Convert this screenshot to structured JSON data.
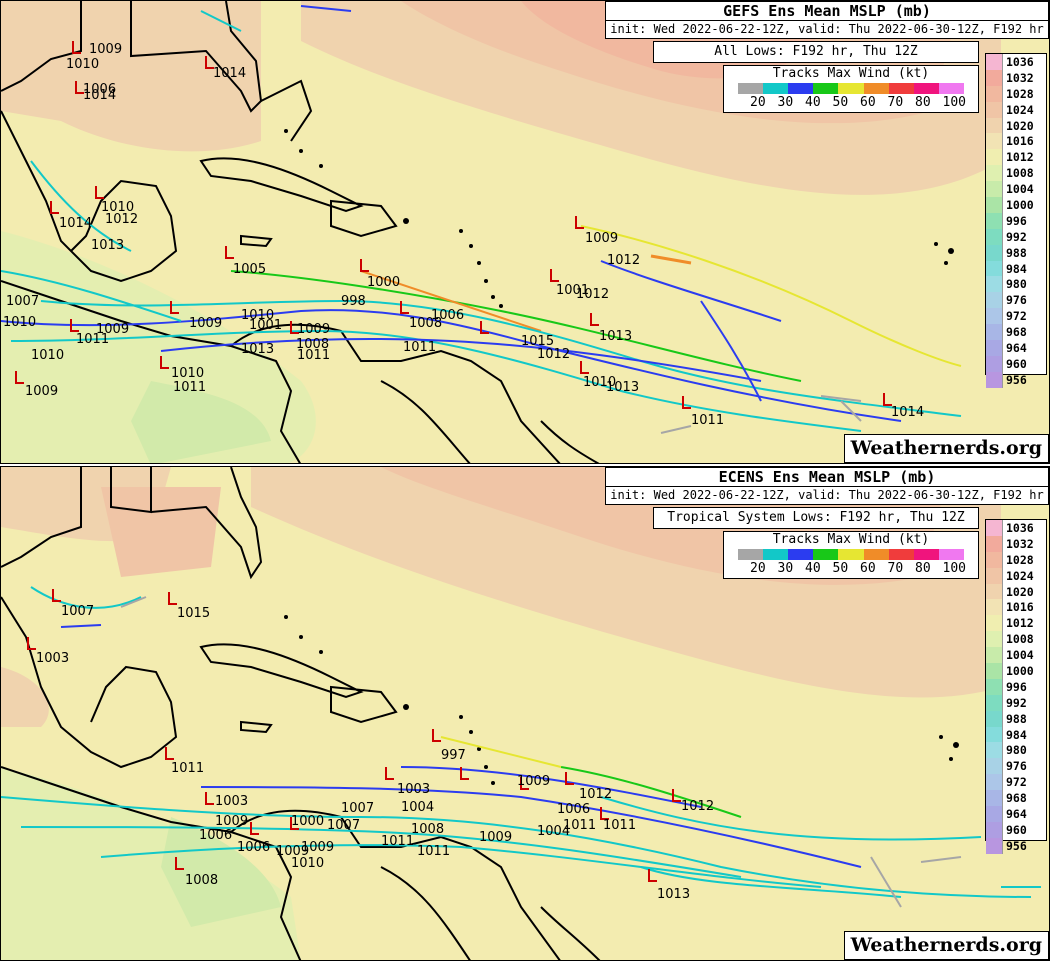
{
  "panels": [
    {
      "id": "gefs",
      "title": "GEFS Ens Mean MSLP (mb)",
      "subtitle": "init: Wed 2022-06-22-12Z, valid: Thu 2022-06-30-12Z, F192 hr",
      "lows_label": "All Lows: F192 hr, Thu 12Z",
      "low_labels": [
        "1009",
        "1014",
        "1010",
        "1006",
        "1014",
        "1010",
        "1014",
        "1012",
        "1013",
        "1005",
        "998",
        "1000",
        "1009",
        "1012",
        "1007",
        "1010",
        "1009",
        "1010",
        "1001",
        "1009",
        "1008",
        "1011",
        "1008",
        "1006",
        "1013",
        "1011",
        "1015",
        "1012",
        "1010",
        "1011",
        "1009",
        "1001",
        "1012",
        "1013",
        "1010",
        "1013",
        "1011",
        "1014",
        "1009",
        "1010",
        "1011"
      ]
    },
    {
      "id": "ecens",
      "title": "ECENS Ens Mean MSLP (mb)",
      "subtitle": "init: Wed 2022-06-22-12Z, valid: Thu 2022-06-30-12Z, F192 hr",
      "lows_label": "Tropical System Lows: F192 hr, Thu 12Z",
      "low_labels": [
        "1007",
        "1015",
        "1003",
        "1011",
        "997",
        "1003",
        "1009",
        "1006",
        "1009",
        "1007",
        "1000",
        "1011",
        "1003",
        "1008",
        "1009",
        "1004",
        "1011",
        "1009",
        "1012",
        "1006",
        "1011",
        "1004",
        "1011",
        "1012",
        "1013",
        "1010",
        "1008",
        "1006",
        "1009",
        "1007"
      ]
    }
  ],
  "wind_legend": {
    "title": "Tracks Max Wind (kt)",
    "labels": [
      "20",
      "30",
      "40",
      "50",
      "60",
      "70",
      "80",
      "100"
    ],
    "colors": [
      "#a6a6a6",
      "#12c8c8",
      "#2b3cf0",
      "#18c818",
      "#e6e632",
      "#f08c28",
      "#f03c3c",
      "#f0147d",
      "#f078f0"
    ]
  },
  "mslp_legend": {
    "labels": [
      "1036",
      "1032",
      "1028",
      "1024",
      "1020",
      "1016",
      "1012",
      "1008",
      "1004",
      "1000",
      "996",
      "992",
      "988",
      "984",
      "980",
      "976",
      "972",
      "968",
      "964",
      "960",
      "956"
    ],
    "colors": [
      "#f5b6d2",
      "#f2aa9c",
      "#f1b89f",
      "#f0c5a6",
      "#f0d3ae",
      "#f2e3b4",
      "#f0eeb0",
      "#dff0b0",
      "#c8ebaa",
      "#aae4a6",
      "#8ee0b2",
      "#7ddcc0",
      "#78d8cc",
      "#84dcdc",
      "#9cdce4",
      "#a8d2e6",
      "#acc6e8",
      "#a8b6e6",
      "#a8a8e4",
      "#ae9ee2",
      "#b896e0"
    ]
  },
  "brand": "Weathernerds.org"
}
